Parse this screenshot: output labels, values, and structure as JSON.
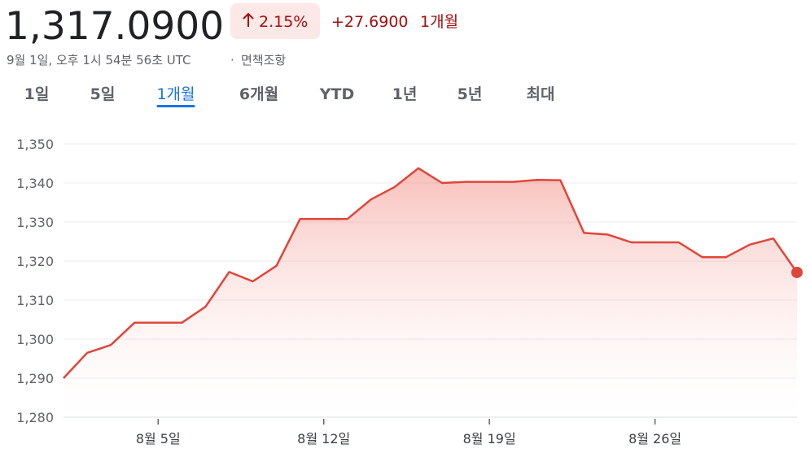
{
  "header": {
    "price": "1,317.0900",
    "change_pct": "2.15%",
    "change": "+27.6900",
    "period": "1개월",
    "timestamp": "9월 1일, 오후 1시 54분 56초 UTC",
    "separator": "·",
    "disclaimer": "면책조항"
  },
  "tabs": {
    "items": [
      "1일",
      "5일",
      "1개월",
      "6개월",
      "YTD",
      "1년",
      "5년",
      "최대"
    ],
    "selected": 2
  },
  "chart_data": {
    "type": "line",
    "x": [
      1,
      2,
      3,
      4,
      5,
      6,
      7,
      8,
      9,
      10,
      11,
      12,
      13,
      14,
      15,
      16,
      17,
      18,
      19,
      20,
      21,
      22,
      23,
      24,
      25,
      26,
      27,
      28,
      29,
      30,
      31,
      32
    ],
    "series": [
      {
        "color": "#e0453a",
        "values": [
          1290.0,
          1296.5,
          1298.5,
          1304.2,
          1304.2,
          1304.2,
          1308.3,
          1317.2,
          1314.8,
          1318.8,
          1330.8,
          1330.8,
          1330.8,
          1335.8,
          1339.0,
          1343.8,
          1340.0,
          1340.3,
          1340.3,
          1340.3,
          1340.8,
          1340.7,
          1327.2,
          1326.8,
          1324.8,
          1324.8,
          1324.8,
          1321.0,
          1321.0,
          1324.2,
          1325.8,
          1317.09
        ]
      }
    ],
    "xlim": [
      1,
      32
    ],
    "xticks": [
      {
        "value": 5,
        "label": "8월 5일"
      },
      {
        "value": 12,
        "label": "8월 12일"
      },
      {
        "value": 19,
        "label": "8월 19일"
      },
      {
        "value": 26,
        "label": "8월 26일"
      }
    ],
    "ylim": [
      1280,
      1350
    ],
    "yticks": [
      {
        "value": 1280,
        "label": "1,280"
      },
      {
        "value": 1290,
        "label": "1,290"
      },
      {
        "value": 1300,
        "label": "1,300"
      },
      {
        "value": 1310,
        "label": "1,310"
      },
      {
        "value": 1320,
        "label": "1,320"
      },
      {
        "value": 1330,
        "label": "1,330"
      },
      {
        "value": 1340,
        "label": "1,340"
      },
      {
        "value": 1350,
        "label": "1,350"
      }
    ],
    "grid": true
  }
}
